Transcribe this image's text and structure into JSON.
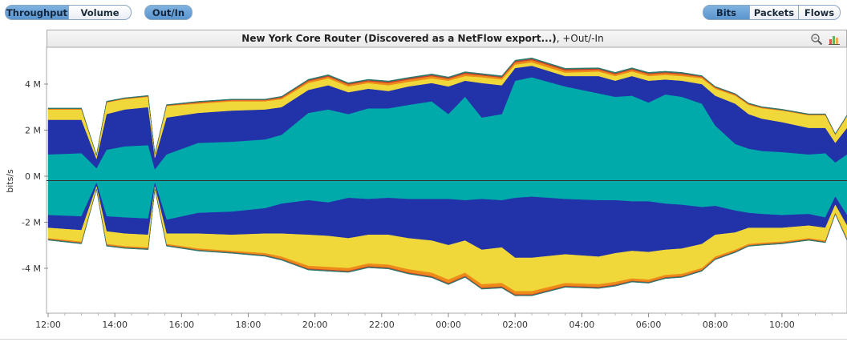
{
  "toolbar": {
    "mode_buttons": [
      {
        "label": "Throughput",
        "active": true
      },
      {
        "label": "Volume",
        "active": false
      }
    ],
    "direction_button": {
      "label": "Out/In",
      "active": true
    },
    "unit_buttons": [
      {
        "label": "Bits",
        "active": true
      },
      {
        "label": "Packets",
        "active": false
      },
      {
        "label": "Flows",
        "active": false
      }
    ]
  },
  "header": {
    "title_bold": "New York Core Router (Discovered as a NetFlow export...)",
    "title_suffix": ", +Out/-In",
    "icons": [
      "zoom-reset-icon",
      "chart-options-icon"
    ]
  },
  "chart_data": {
    "type": "area",
    "ylabel": "bits/s",
    "yticks": [
      {
        "value": 4,
        "label": "4 M"
      },
      {
        "value": 2,
        "label": "2 M"
      },
      {
        "value": 0,
        "label": "0 M"
      },
      {
        "value": -2,
        "label": "-2 M"
      },
      {
        "value": -4,
        "label": "-4 M"
      }
    ],
    "ylim": [
      -5.95,
      5.6
    ],
    "xlim": [
      12.0,
      35.95
    ],
    "xticks": [
      "12:00",
      "14:00",
      "16:00",
      "18:00",
      "20:00",
      "22:00",
      "00:00",
      "02:00",
      "04:00",
      "06:00",
      "08:00",
      "10:00"
    ],
    "x": [
      12.0,
      13.0,
      13.45,
      13.75,
      14.3,
      15.0,
      15.2,
      15.55,
      16.5,
      17.5,
      18.5,
      19.0,
      19.8,
      20.4,
      21.0,
      21.6,
      22.2,
      22.8,
      23.5,
      24.0,
      24.5,
      25.0,
      25.6,
      26.0,
      26.5,
      27.5,
      28.5,
      29.0,
      29.5,
      30.0,
      30.5,
      31.0,
      31.6,
      32.0,
      32.6,
      33.0,
      33.4,
      34.0,
      34.8,
      35.3,
      35.6,
      35.95
    ],
    "series_colors": [
      "#00aaaa",
      "#2233aa",
      "#f0d83a",
      "#ee8a1a",
      "#c83f2e",
      "#2d7a6a"
    ],
    "outbound": [
      [
        0.95,
        1.0,
        0.35,
        1.15,
        1.3,
        1.35,
        0.3,
        0.95,
        1.45,
        1.5,
        1.6,
        1.8,
        2.75,
        2.9,
        2.7,
        2.95,
        2.95,
        3.1,
        3.25,
        2.7,
        3.45,
        2.55,
        2.7,
        4.15,
        4.3,
        3.9,
        3.6,
        3.45,
        3.5,
        3.2,
        3.55,
        3.45,
        3.15,
        2.2,
        1.4,
        1.2,
        1.1,
        1.05,
        0.95,
        1.0,
        0.6,
        0.95
      ],
      [
        1.5,
        1.45,
        0.4,
        1.55,
        1.6,
        1.65,
        0.5,
        1.6,
        1.3,
        1.35,
        1.3,
        1.2,
        1.0,
        1.05,
        0.95,
        0.85,
        0.75,
        0.8,
        0.8,
        1.2,
        0.7,
        1.5,
        1.25,
        0.55,
        0.5,
        0.45,
        0.75,
        0.7,
        0.85,
        0.95,
        0.65,
        0.7,
        0.85,
        1.3,
        1.75,
        1.5,
        1.4,
        1.3,
        1.15,
        1.1,
        0.85,
        1.15
      ],
      [
        0.45,
        0.45,
        0.15,
        0.5,
        0.45,
        0.45,
        0.15,
        0.5,
        0.4,
        0.4,
        0.35,
        0.35,
        0.3,
        0.3,
        0.25,
        0.25,
        0.25,
        0.2,
        0.2,
        0.25,
        0.2,
        0.25,
        0.25,
        0.15,
        0.15,
        0.15,
        0.2,
        0.2,
        0.2,
        0.2,
        0.2,
        0.2,
        0.25,
        0.3,
        0.35,
        0.4,
        0.45,
        0.5,
        0.55,
        0.55,
        0.35,
        0.5
      ],
      [
        0.02,
        0.02,
        0.01,
        0.02,
        0.02,
        0.02,
        0.01,
        0.02,
        0.05,
        0.05,
        0.05,
        0.06,
        0.08,
        0.08,
        0.08,
        0.08,
        0.1,
        0.1,
        0.1,
        0.08,
        0.1,
        0.08,
        0.08,
        0.1,
        0.1,
        0.1,
        0.08,
        0.08,
        0.08,
        0.08,
        0.08,
        0.08,
        0.06,
        0.05,
        0.04,
        0.03,
        0.03,
        0.02,
        0.02,
        0.02,
        0.02,
        0.02
      ],
      [
        0.01,
        0.01,
        0.0,
        0.01,
        0.01,
        0.01,
        0.0,
        0.01,
        0.02,
        0.02,
        0.02,
        0.03,
        0.04,
        0.04,
        0.04,
        0.04,
        0.05,
        0.05,
        0.05,
        0.04,
        0.05,
        0.04,
        0.04,
        0.05,
        0.05,
        0.05,
        0.04,
        0.04,
        0.04,
        0.04,
        0.04,
        0.04,
        0.03,
        0.02,
        0.02,
        0.02,
        0.01,
        0.01,
        0.01,
        0.01,
        0.01,
        0.01
      ],
      [
        0.03,
        0.03,
        0.01,
        0.03,
        0.03,
        0.03,
        0.01,
        0.03,
        0.03,
        0.03,
        0.03,
        0.03,
        0.04,
        0.04,
        0.04,
        0.04,
        0.04,
        0.04,
        0.04,
        0.04,
        0.04,
        0.04,
        0.04,
        0.04,
        0.04,
        0.04,
        0.04,
        0.04,
        0.04,
        0.04,
        0.04,
        0.04,
        0.03,
        0.03,
        0.03,
        0.03,
        0.03,
        0.03,
        0.03,
        0.03,
        0.02,
        0.03
      ]
    ],
    "inbound": [
      [
        1.7,
        1.75,
        0.3,
        1.75,
        1.8,
        1.85,
        0.3,
        1.9,
        1.6,
        1.55,
        1.4,
        1.2,
        1.05,
        1.15,
        0.95,
        1.0,
        0.95,
        1.0,
        1.0,
        1.0,
        1.05,
        1.0,
        1.05,
        0.95,
        0.9,
        1.0,
        1.05,
        1.05,
        1.1,
        1.1,
        1.2,
        1.25,
        1.35,
        1.3,
        1.5,
        1.6,
        1.65,
        1.7,
        1.65,
        1.8,
        0.9,
        1.7
      ],
      [
        0.55,
        0.6,
        0.15,
        0.65,
        0.7,
        0.7,
        0.15,
        0.6,
        0.9,
        1.0,
        1.1,
        1.3,
        1.5,
        1.45,
        1.75,
        1.55,
        1.6,
        1.7,
        1.8,
        2.0,
        1.75,
        2.2,
        2.05,
        2.6,
        2.65,
        2.4,
        2.45,
        2.3,
        2.15,
        2.2,
        2.0,
        1.9,
        1.6,
        1.25,
        0.95,
        0.65,
        0.6,
        0.55,
        0.5,
        0.45,
        0.35,
        0.45
      ],
      [
        0.45,
        0.5,
        0.1,
        0.55,
        0.55,
        0.55,
        0.1,
        0.45,
        0.65,
        0.7,
        0.85,
        1.0,
        1.35,
        1.35,
        1.3,
        1.25,
        1.3,
        1.35,
        1.4,
        1.5,
        1.4,
        1.5,
        1.55,
        1.45,
        1.45,
        1.25,
        1.2,
        1.25,
        1.2,
        1.2,
        1.1,
        1.1,
        1.05,
        0.95,
        0.75,
        0.7,
        0.65,
        0.6,
        0.55,
        0.55,
        0.35,
        0.55
      ],
      [
        0.04,
        0.05,
        0.01,
        0.05,
        0.05,
        0.05,
        0.01,
        0.05,
        0.06,
        0.06,
        0.08,
        0.1,
        0.12,
        0.12,
        0.12,
        0.12,
        0.12,
        0.14,
        0.15,
        0.15,
        0.14,
        0.15,
        0.15,
        0.14,
        0.14,
        0.12,
        0.12,
        0.12,
        0.1,
        0.1,
        0.1,
        0.1,
        0.08,
        0.08,
        0.07,
        0.06,
        0.06,
        0.05,
        0.05,
        0.05,
        0.03,
        0.05
      ],
      [
        0.01,
        0.01,
        0.0,
        0.01,
        0.01,
        0.01,
        0.0,
        0.01,
        0.01,
        0.01,
        0.02,
        0.02,
        0.03,
        0.03,
        0.03,
        0.03,
        0.03,
        0.03,
        0.03,
        0.03,
        0.03,
        0.03,
        0.03,
        0.03,
        0.03,
        0.03,
        0.03,
        0.03,
        0.02,
        0.02,
        0.02,
        0.02,
        0.02,
        0.02,
        0.02,
        0.01,
        0.01,
        0.01,
        0.01,
        0.01,
        0.01,
        0.01
      ],
      [
        0.03,
        0.03,
        0.01,
        0.03,
        0.03,
        0.03,
        0.01,
        0.03,
        0.03,
        0.03,
        0.03,
        0.03,
        0.03,
        0.03,
        0.03,
        0.03,
        0.03,
        0.03,
        0.03,
        0.03,
        0.03,
        0.03,
        0.03,
        0.03,
        0.03,
        0.03,
        0.03,
        0.03,
        0.03,
        0.03,
        0.03,
        0.03,
        0.03,
        0.03,
        0.03,
        0.03,
        0.03,
        0.03,
        0.03,
        0.03,
        0.02,
        0.03
      ]
    ]
  }
}
